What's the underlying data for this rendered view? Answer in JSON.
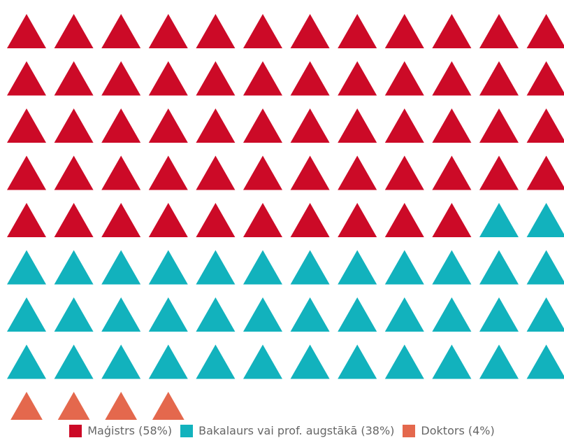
{
  "chart_data": {
    "type": "waffle",
    "icon": "triangle-icon",
    "total_icons": 100,
    "series": [
      {
        "name": "Maģistrs (58%)",
        "value": 58,
        "color": "#cc0a27"
      },
      {
        "name": "Bakalaurs vai prof. augstākā (38%)",
        "value": 38,
        "color": "#12b2bd"
      },
      {
        "name": "Doktors (4%)",
        "value": 4,
        "color": "#e4684d"
      }
    ],
    "legend_position": "bottom"
  }
}
